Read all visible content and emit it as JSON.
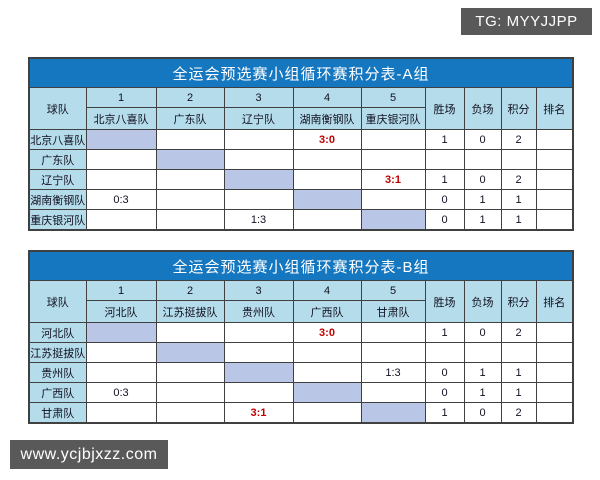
{
  "badges": {
    "top_right": "TG: MYYJJPP",
    "bottom_left": "www.ycjbjxzz.com"
  },
  "colors": {
    "title_bg": "#1577c0",
    "header_bg": "#b5dcea",
    "diagonal_bg": "#b9c6e6",
    "red_score": "#c00000",
    "badge_bg": "#595959",
    "border": "#404040"
  },
  "headers": {
    "team": "球队",
    "numbers": [
      "1",
      "2",
      "3",
      "4",
      "5"
    ],
    "wins": "胜场",
    "losses": "负场",
    "points": "积分",
    "rank": "排名"
  },
  "tables": [
    {
      "group": "A",
      "title": "全运会预选赛小组循环赛积分表-A组",
      "opponents": [
        "北京八喜队",
        "广东队",
        "辽宁队",
        "湖南衡钢队",
        "重庆银河队"
      ],
      "rows": [
        {
          "team": "北京八喜队",
          "scores": [
            "",
            "",
            "",
            "3:0",
            ""
          ],
          "red": [
            false,
            false,
            false,
            true,
            false
          ],
          "wins": "1",
          "losses": "0",
          "points": "2",
          "rank": ""
        },
        {
          "team": "广东队",
          "scores": [
            "",
            "",
            "",
            "",
            ""
          ],
          "red": [
            false,
            false,
            false,
            false,
            false
          ],
          "wins": "",
          "losses": "",
          "points": "",
          "rank": ""
        },
        {
          "team": "辽宁队",
          "scores": [
            "",
            "",
            "",
            "",
            "3:1"
          ],
          "red": [
            false,
            false,
            false,
            false,
            true
          ],
          "wins": "1",
          "losses": "0",
          "points": "2",
          "rank": ""
        },
        {
          "team": "湖南衡钢队",
          "scores": [
            "0:3",
            "",
            "",
            "",
            ""
          ],
          "red": [
            false,
            false,
            false,
            false,
            false
          ],
          "wins": "0",
          "losses": "1",
          "points": "1",
          "rank": ""
        },
        {
          "team": "重庆银河队",
          "scores": [
            "",
            "",
            "1:3",
            "",
            ""
          ],
          "red": [
            false,
            false,
            false,
            false,
            false
          ],
          "wins": "0",
          "losses": "1",
          "points": "1",
          "rank": ""
        }
      ]
    },
    {
      "group": "B",
      "title": "全运会预选赛小组循环赛积分表-B组",
      "opponents": [
        "河北队",
        "江苏挺拔队",
        "贵州队",
        "广西队",
        "甘肃队"
      ],
      "rows": [
        {
          "team": "河北队",
          "scores": [
            "",
            "",
            "",
            "3:0",
            ""
          ],
          "red": [
            false,
            false,
            false,
            true,
            false
          ],
          "wins": "1",
          "losses": "0",
          "points": "2",
          "rank": ""
        },
        {
          "team": "江苏挺拔队",
          "scores": [
            "",
            "",
            "",
            "",
            ""
          ],
          "red": [
            false,
            false,
            false,
            false,
            false
          ],
          "wins": "",
          "losses": "",
          "points": "",
          "rank": ""
        },
        {
          "team": "贵州队",
          "scores": [
            "",
            "",
            "",
            "",
            "1:3"
          ],
          "red": [
            false,
            false,
            false,
            false,
            false
          ],
          "wins": "0",
          "losses": "1",
          "points": "1",
          "rank": ""
        },
        {
          "team": "广西队",
          "scores": [
            "0:3",
            "",
            "",
            "",
            ""
          ],
          "red": [
            false,
            false,
            false,
            false,
            false
          ],
          "wins": "0",
          "losses": "1",
          "points": "1",
          "rank": ""
        },
        {
          "team": "甘肃队",
          "scores": [
            "",
            "",
            "3:1",
            "",
            ""
          ],
          "red": [
            false,
            false,
            true,
            false,
            false
          ],
          "wins": "1",
          "losses": "0",
          "points": "2",
          "rank": ""
        }
      ]
    }
  ]
}
